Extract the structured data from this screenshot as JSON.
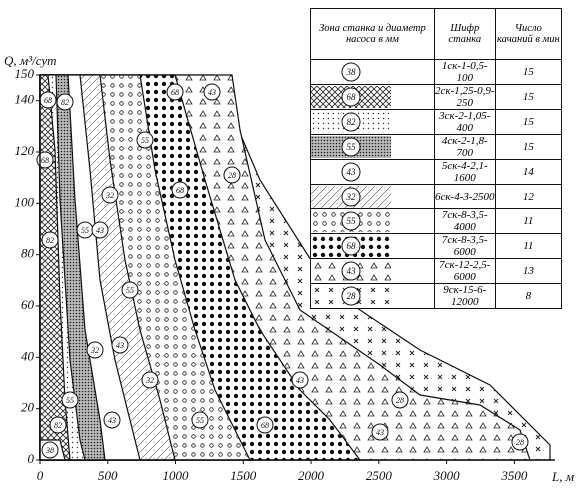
{
  "chart_data": {
    "type": "zone",
    "ylabel": "Q, м³/сут",
    "xlabel": "L, м",
    "xlim": [
      0,
      3800
    ],
    "ylim": [
      0,
      150
    ],
    "xticks": [
      0,
      500,
      1000,
      1500,
      2000,
      2500,
      3000,
      3500
    ],
    "yticks": [
      0,
      20,
      40,
      60,
      80,
      100,
      120,
      140,
      150
    ],
    "legend": {
      "columns": [
        "Зона станка и диаметр насоса в мм",
        "Шифр станка",
        "Число качаний в мин"
      ],
      "rows": [
        {
          "zone": "38",
          "code": "1ск-1-0,5-100",
          "rate": 15,
          "pattern": "none"
        },
        {
          "zone": "68",
          "code": "2ск-1,25-0,9-250",
          "rate": 15,
          "pattern": "crosshatch"
        },
        {
          "zone": "82",
          "code": "3ск-2-1,05-400",
          "rate": 15,
          "pattern": "finedots"
        },
        {
          "zone": "55",
          "code": "4ск-2-1,8-700",
          "rate": 15,
          "pattern": "densedots"
        },
        {
          "zone": "43",
          "code": "5ск-4-2,1-1600",
          "rate": 14,
          "pattern": "none"
        },
        {
          "zone": "32",
          "code": "6ск-4-3-2500",
          "rate": 12,
          "pattern": "lighthatch"
        },
        {
          "zone": "55",
          "code": "7ск-8-3,5-4000",
          "rate": 11,
          "pattern": "rings"
        },
        {
          "zone": "68",
          "code": "7ск-8-3,5-6000",
          "rate": 11,
          "pattern": "bigdots"
        },
        {
          "zone": "43",
          "code": "7ск-12-2,5-6000",
          "rate": 13,
          "pattern": "triangles"
        },
        {
          "zone": "28",
          "code": "9ск-15-6-12000",
          "rate": 8,
          "pattern": "crosses"
        }
      ]
    }
  }
}
